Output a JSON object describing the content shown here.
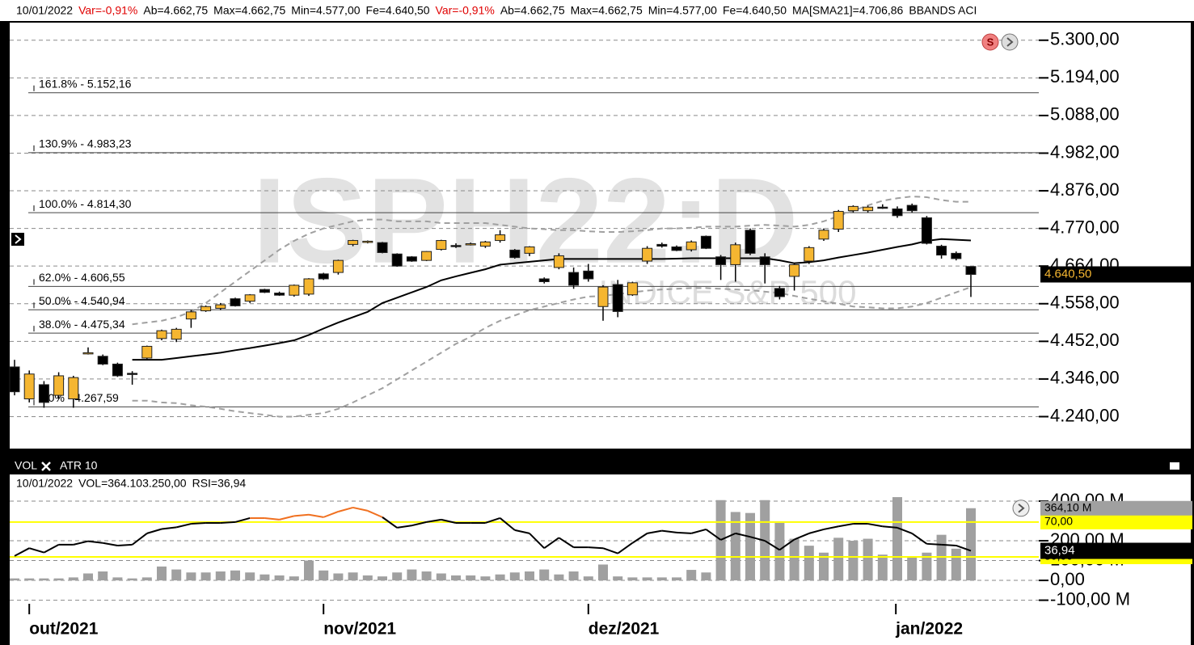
{
  "header": [
    {
      "text": "10/01/2022",
      "color": "#000000"
    },
    {
      "text": "Var=-0,91%",
      "color": "#e00000"
    },
    {
      "text": "Ab=4.662,75",
      "color": "#000000"
    },
    {
      "text": "Max=4.662,75",
      "color": "#000000"
    },
    {
      "text": "Min=4.577,00",
      "color": "#000000"
    },
    {
      "text": "Fe=4.640,50",
      "color": "#000000"
    },
    {
      "text": "Var=-0,91%",
      "color": "#e00000"
    },
    {
      "text": "Ab=4.662,75",
      "color": "#000000"
    },
    {
      "text": "Max=4.662,75",
      "color": "#000000"
    },
    {
      "text": "Min=4.577,00",
      "color": "#000000"
    },
    {
      "text": "Fe=4.640,50",
      "color": "#000000"
    },
    {
      "text": "MA[SMA21]=4.706,86",
      "color": "#000000"
    },
    {
      "text": "BBANDS ACI",
      "color": "#000000"
    }
  ],
  "chart_data": [
    {
      "type": "candlestick",
      "watermark": "ISPH22:D",
      "watermark_subtitle": "INDICE S&P 500",
      "badge": "S",
      "categories": [
        null,
        null,
        null,
        null,
        null,
        null,
        null,
        null,
        null,
        null,
        null,
        null,
        null,
        null,
        null,
        null,
        null,
        null,
        null,
        null,
        null,
        null,
        null,
        null,
        null,
        null,
        null,
        null,
        null,
        null,
        null,
        null,
        null,
        null,
        null,
        null,
        null,
        null,
        null,
        null,
        null,
        null,
        null,
        null,
        null,
        null,
        null,
        null,
        null,
        null,
        null,
        null,
        null,
        null,
        null,
        null,
        null,
        null,
        null,
        null,
        null,
        null,
        null,
        null,
        null,
        null
      ],
      "open": [
        4380,
        4290,
        4330,
        4300,
        4290,
        4420,
        4410,
        4388,
        4362,
        4405,
        4460,
        4458,
        4515,
        4538,
        4545,
        4572,
        4565,
        4598,
        4588,
        4582,
        4585,
        4642,
        4646,
        4725,
        4732,
        4730,
        4698,
        4690,
        4680,
        4711,
        4722,
        4726,
        4720,
        4736,
        4709,
        4700,
        4628,
        4660,
        4646,
        4650,
        4550,
        4612,
        4583,
        4678,
        4725,
        4718,
        4710,
        4748,
        4690,
        4668,
        4765,
        4690,
        4601,
        4635,
        4678,
        4740,
        4768,
        4820,
        4820,
        4830,
        4825,
        4835,
        4800,
        4720,
        4700,
        4662.75
      ],
      "high": [
        4400,
        4370,
        4340,
        4365,
        4355,
        4435,
        4415,
        4392,
        4368,
        4440,
        4485,
        4490,
        4540,
        4553,
        4560,
        4575,
        4585,
        4600,
        4592,
        4612,
        4630,
        4645,
        4682,
        4738,
        4736,
        4732,
        4700,
        4692,
        4706,
        4738,
        4728,
        4730,
        4735,
        4765,
        4712,
        4720,
        4632,
        4700,
        4660,
        4670,
        4610,
        4625,
        4620,
        4720,
        4730,
        4722,
        4736,
        4750,
        4695,
        4730,
        4770,
        4700,
        4608,
        4670,
        4720,
        4770,
        4822,
        4835,
        4834,
        4838,
        4832,
        4840,
        4805,
        4724,
        4705,
        4662.75
      ],
      "low": [
        4300,
        4280,
        4265,
        4290,
        4265,
        4415,
        4385,
        4352,
        4330,
        4400,
        4455,
        4450,
        4490,
        4535,
        4540,
        4550,
        4560,
        4588,
        4580,
        4578,
        4580,
        4625,
        4640,
        4720,
        4728,
        4700,
        4662,
        4676,
        4678,
        4708,
        4715,
        4722,
        4715,
        4730,
        4685,
        4692,
        4615,
        4655,
        4600,
        4620,
        4510,
        4520,
        4580,
        4670,
        4716,
        4706,
        4705,
        4712,
        4625,
        4620,
        4695,
        4615,
        4570,
        4595,
        4670,
        4735,
        4760,
        4815,
        4815,
        4825,
        4800,
        4815,
        4725,
        4685,
        4680,
        4577
      ],
      "close": [
        4310,
        4360,
        4280,
        4355,
        4350,
        4420,
        4388,
        4355,
        4360,
        4438,
        4482,
        4486,
        4535,
        4550,
        4555,
        4552,
        4583,
        4590,
        4582,
        4610,
        4628,
        4628,
        4680,
        4736,
        4734,
        4702,
        4664,
        4678,
        4705,
        4736,
        4720,
        4727,
        4732,
        4752,
        4688,
        4718,
        4620,
        4693,
        4610,
        4628,
        4605,
        4536,
        4617,
        4714,
        4720,
        4708,
        4732,
        4714,
        4668,
        4724,
        4700,
        4668,
        4578,
        4668,
        4716,
        4765,
        4818,
        4832,
        4830,
        4828,
        4806,
        4820,
        4728,
        4695,
        4685,
        4640.5
      ],
      "up_color": "#f5b631",
      "down_color": "#000000",
      "overlays": [
        {
          "color": "#000000",
          "dashed": false,
          "values": [
            null,
            null,
            null,
            null,
            null,
            null,
            null,
            null,
            4400,
            4400,
            4400,
            4405,
            4410,
            4415,
            4420,
            4427,
            4433,
            4440,
            4447,
            4455,
            4470,
            4488,
            4505,
            4520,
            4535,
            4560,
            4575,
            4590,
            4605,
            4624,
            4635,
            4645,
            4655,
            4668,
            4672,
            4676,
            4680,
            4684,
            4684,
            4684,
            4684,
            4684,
            4684,
            4684,
            4684,
            4685,
            4686,
            4686,
            4686,
            4686,
            4686,
            4686,
            4680,
            4672,
            4675,
            4680,
            4688,
            4695,
            4702,
            4710,
            4718,
            4725,
            4735,
            4740,
            4738,
            4736
          ]
        },
        {
          "color": "#a0a0a0",
          "dashed": true,
          "values": [
            null,
            null,
            null,
            null,
            null,
            null,
            null,
            null,
            4500,
            4505,
            4510,
            4520,
            4535,
            4560,
            4590,
            4620,
            4650,
            4680,
            4710,
            4735,
            4755,
            4770,
            4780,
            4790,
            4795,
            4795,
            4790,
            4790,
            4790,
            4785,
            4785,
            4785,
            4785,
            4780,
            4775,
            4770,
            4768,
            4765,
            4765,
            4762,
            4760,
            4760,
            4762,
            4765,
            4770,
            4770,
            4772,
            4775,
            4775,
            4775,
            4778,
            4780,
            4778,
            4775,
            4780,
            4790,
            4805,
            4820,
            4835,
            4848,
            4855,
            4860,
            4858,
            4850,
            4845,
            4845
          ]
        },
        {
          "color": "#a0a0a0",
          "dashed": true,
          "values": [
            null,
            null,
            null,
            null,
            null,
            null,
            null,
            null,
            4285,
            4285,
            4280,
            4278,
            4272,
            4268,
            4262,
            4255,
            4250,
            4245,
            4240,
            4240,
            4245,
            4250,
            4262,
            4280,
            4300,
            4320,
            4345,
            4370,
            4395,
            4420,
            4445,
            4465,
            4490,
            4510,
            4525,
            4540,
            4550,
            4560,
            4570,
            4578,
            4580,
            4585,
            4590,
            4595,
            4598,
            4600,
            4602,
            4602,
            4600,
            4598,
            4596,
            4592,
            4588,
            4580,
            4572,
            4565,
            4558,
            4550,
            4548,
            4545,
            4545,
            4550,
            4560,
            4575,
            4590,
            4605
          ]
        }
      ],
      "ylim": [
        4150,
        5345
      ],
      "yticks": [
        {
          "value": 4240,
          "label": "4.240,00"
        },
        {
          "value": 4346,
          "label": "4.346,00"
        },
        {
          "value": 4452,
          "label": "4.452,00"
        },
        {
          "value": 4558,
          "label": "4.558,00"
        },
        {
          "value": 4664,
          "label": "4.664,00"
        },
        {
          "value": 4770,
          "label": "4.770,00"
        },
        {
          "value": 4876,
          "label": "4.876,00"
        },
        {
          "value": 4982,
          "label": "4.982,00"
        },
        {
          "value": 5088,
          "label": "5.088,00"
        },
        {
          "value": 5194,
          "label": "5.194,00"
        },
        {
          "value": 5300,
          "label": "5.300,00"
        }
      ],
      "xticks": [
        {
          "value": 1,
          "label": "out/2021"
        },
        {
          "value": 21,
          "label": "nov/2021"
        },
        {
          "value": 39,
          "label": "dez/2021"
        },
        {
          "value": 59.9,
          "label": "jan/2022"
        }
      ],
      "grid": true,
      "fibonacci": [
        {
          "value": 5152.16,
          "label": "161.8% - 5.152,16"
        },
        {
          "value": 4983.23,
          "label": "130.9% - 4.983,23"
        },
        {
          "value": 4814.3,
          "label": "100.0% - 4.814,30"
        },
        {
          "value": 4606.55,
          "label": "62.0% - 4.606,55"
        },
        {
          "value": 4540.94,
          "label": "50.0% - 4.540,94"
        },
        {
          "value": 4475.34,
          "label": "38.0% - 4.475,34"
        },
        {
          "value": 4267.59,
          "label": "0.0% - 4.267,59"
        }
      ],
      "last_label": {
        "value": 4640.5,
        "label": "4.640,50"
      }
    },
    {
      "type": "volume_rsi",
      "tabs": [
        "VOL",
        "ATR 10"
      ],
      "info": [
        "10/01/2022",
        "VOL=364.103.250,00",
        "RSI=36,94"
      ],
      "values": [
        10,
        10,
        10,
        10,
        15,
        35,
        45,
        15,
        10,
        15,
        70,
        55,
        40,
        40,
        45,
        50,
        40,
        30,
        25,
        20,
        100,
        50,
        35,
        40,
        25,
        20,
        40,
        55,
        45,
        35,
        25,
        25,
        20,
        30,
        40,
        45,
        55,
        30,
        45,
        20,
        80,
        20,
        15,
        15,
        15,
        15,
        53,
        40,
        405,
        345,
        340,
        405,
        290,
        210,
        175,
        140,
        215,
        200,
        210,
        130,
        420,
        120,
        140,
        230,
        160,
        364.1
      ],
      "color": "#a0a0a0",
      "ylim": [
        -171,
        461
      ],
      "yticks": [
        {
          "value": -100,
          "label": "-100,00 M"
        },
        {
          "value": 0,
          "label": "0,00"
        },
        {
          "value": 100,
          "label": "100,00 M"
        },
        {
          "value": 200,
          "label": "200,00 M"
        },
        {
          "value": 400,
          "label": "400,00 M"
        }
      ],
      "grid": true,
      "last_label": {
        "value": 364.1,
        "label": "364,10 M"
      },
      "rsi": {
        "values": [
          31,
          40,
          35,
          44,
          44,
          48,
          46,
          43,
          44,
          57,
          62,
          64,
          68,
          69,
          69,
          70,
          74.6,
          74.6,
          72.8,
          77,
          78.5,
          75.6,
          82,
          86.7,
          83,
          75.6,
          63.5,
          66,
          70,
          72.8,
          69,
          69,
          69,
          74.6,
          60.7,
          57,
          40,
          52,
          41,
          41,
          40,
          34,
          46,
          57,
          60,
          58,
          57,
          61.6,
          49.5,
          57,
          53,
          48.5,
          38,
          50,
          57,
          61.6,
          65,
          68,
          68,
          65,
          63.5,
          57,
          45,
          44,
          43,
          36.94
        ],
        "color": "#000000",
        "overbought_color": "#f07020",
        "y2lim": [
          -36,
          108
        ],
        "levels": [
          {
            "value": 70,
            "label": "70,00"
          },
          {
            "value": 30,
            "label": "30,00"
          }
        ],
        "level_color": "#ffff00",
        "last_label": {
          "value": 36.94,
          "label": "36,94"
        }
      }
    }
  ]
}
